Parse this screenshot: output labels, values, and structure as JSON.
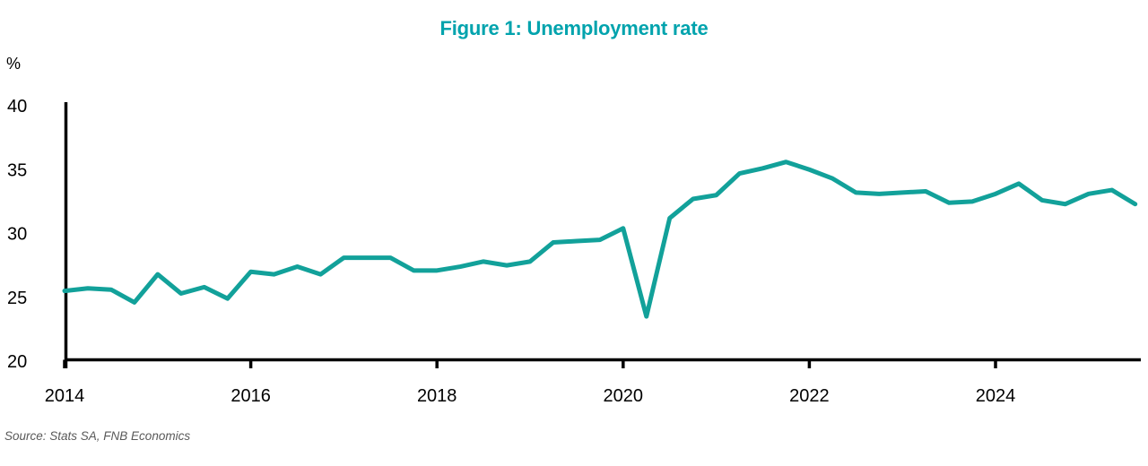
{
  "header": {
    "title": "Figure 1: Unemployment rate"
  },
  "y_axis_unit": "%",
  "source_note": "Source: Stats SA, FNB Economics",
  "colors": {
    "line": "#12A19A",
    "title": "#00A3AD",
    "axis": "#000000",
    "source_text": "#595959",
    "background": "#FFFFFF"
  },
  "chart_data": {
    "type": "line",
    "title": "Figure 1: Unemployment rate",
    "xlabel": "",
    "ylabel": "%",
    "ylim": [
      20,
      40
    ],
    "xlim": [
      2014.0,
      2025.75
    ],
    "y_ticks": [
      40,
      35,
      30,
      25,
      20
    ],
    "x_ticks": [
      2014,
      2016,
      2018,
      2020,
      2022,
      2024
    ],
    "grid": false,
    "legend_position": "none",
    "x_start": 2014.0,
    "x_step_years": 0.25,
    "frequency": "quarterly",
    "series": [
      {
        "name": "Unemployment rate (%)",
        "first_period": "2014Q1",
        "last_period": "2025Q3",
        "values": [
          25.5,
          25.7,
          25.6,
          24.6,
          26.8,
          25.3,
          25.8,
          24.9,
          27.0,
          26.8,
          27.4,
          26.8,
          28.1,
          28.1,
          28.1,
          27.1,
          27.1,
          27.4,
          27.8,
          27.5,
          27.8,
          29.3,
          29.4,
          29.5,
          30.4,
          23.5,
          31.2,
          32.7,
          33.0,
          34.7,
          35.1,
          35.6,
          35.0,
          34.3,
          33.2,
          33.1,
          33.2,
          33.3,
          32.4,
          32.5,
          33.1,
          33.9,
          32.6,
          32.3,
          33.1,
          33.4,
          32.3
        ]
      }
    ]
  }
}
